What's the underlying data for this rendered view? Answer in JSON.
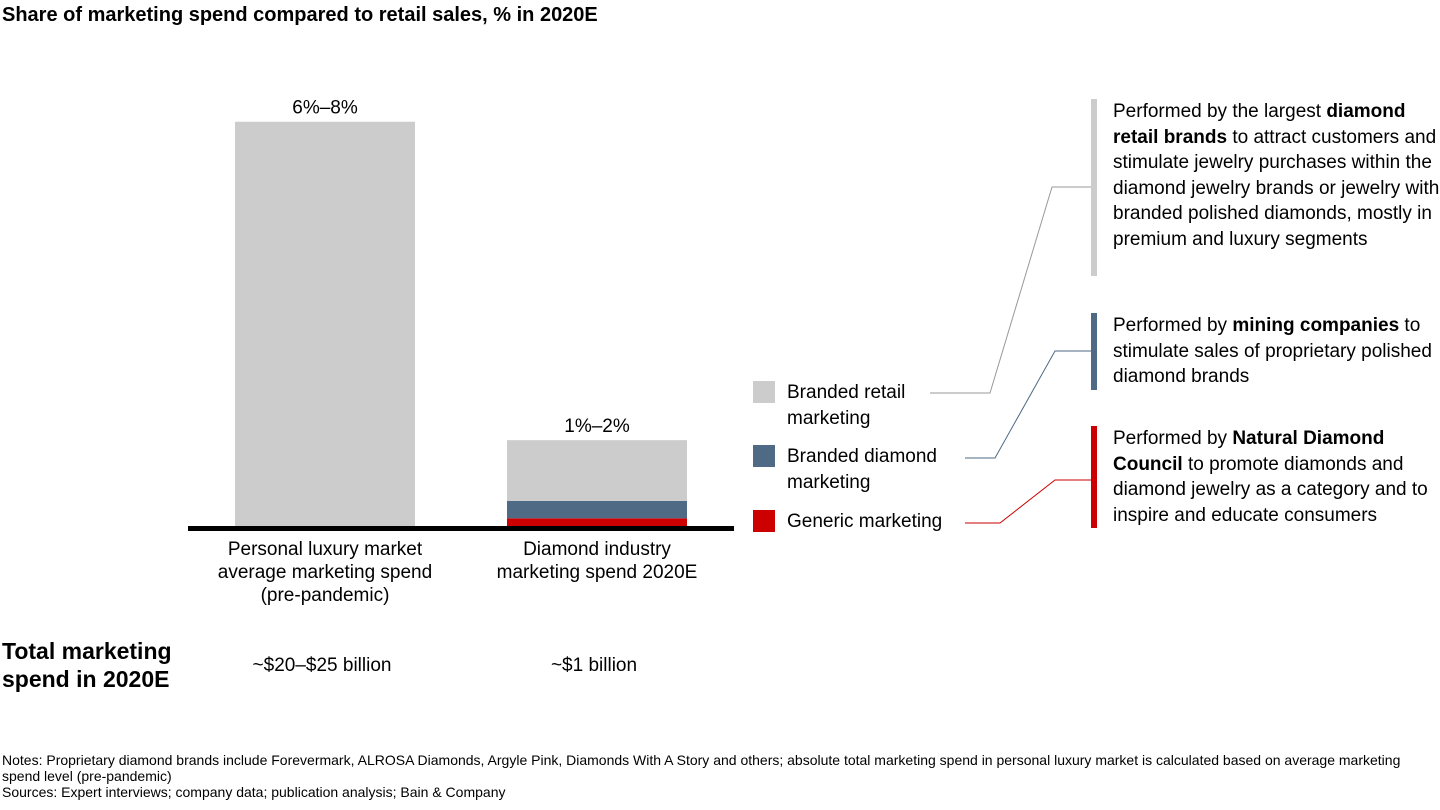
{
  "title": "Share of marketing spend compared to retail sales, % in 2020E",
  "chart_data": {
    "type": "bar",
    "stacked": true,
    "categories": [
      "Personal luxury market average marketing spend (pre-pandemic)",
      "Diamond industry marketing spend 2020E"
    ],
    "series": [
      {
        "name": "Generic marketing",
        "values": [
          0,
          0.15
        ],
        "color": "#cc0000"
      },
      {
        "name": "Branded diamond marketing",
        "values": [
          0,
          0.3
        ],
        "color": "#4e6a85"
      },
      {
        "name": "Branded retail marketing",
        "values": [
          7.0,
          1.05
        ],
        "color": "#cccccc"
      }
    ],
    "data_labels": [
      "6%–8%",
      "1%–2%"
    ],
    "ylim": [
      0,
      7.6
    ],
    "grid": false,
    "legend_position": "right"
  },
  "categories_text": [
    [
      "Personal luxury market",
      "average marketing spend",
      "(pre-pandemic)"
    ],
    [
      "Diamond industry",
      "marketing spend 2020E"
    ]
  ],
  "total": {
    "label": "Total marketing spend in 2020E",
    "values": [
      "~$20–$25 billion",
      "~$1 billion"
    ]
  },
  "legend": [
    {
      "label": "Branded retail marketing",
      "color": "#cccccc"
    },
    {
      "label": "Branded diamond marketing",
      "color": "#4e6a85"
    },
    {
      "label": "Generic marketing",
      "color": "#cc0000"
    }
  ],
  "descriptions": [
    {
      "pre": "Performed by the largest ",
      "bold": "diamond retail brands",
      "post": " to attract customers and stimulate jewelry purchases within the diamond jewelry brands or jewelry with branded polished diamonds, mostly in premium and luxury segments",
      "color": "#cccccc"
    },
    {
      "pre": "Performed by ",
      "bold": "mining companies",
      "post": " to stimulate sales of proprietary polished diamond brands",
      "color": "#4e6a85"
    },
    {
      "pre": "Performed by ",
      "bold": "Natural Diamond Council",
      "post": " to promote diamonds and diamond jewelry as a category and to inspire and educate consumers",
      "color": "#cc0000"
    }
  ],
  "notes": {
    "line1": "Notes: Proprietary diamond brands include Forevermark, ALROSA Diamonds, Argyle Pink, Diamonds With A Story and others; absolute total marketing spend in personal luxury market is calculated based on average marketing spend level (pre-pandemic)",
    "line2": "Sources: Expert interviews; company data; publication analysis; Bain & Company"
  }
}
